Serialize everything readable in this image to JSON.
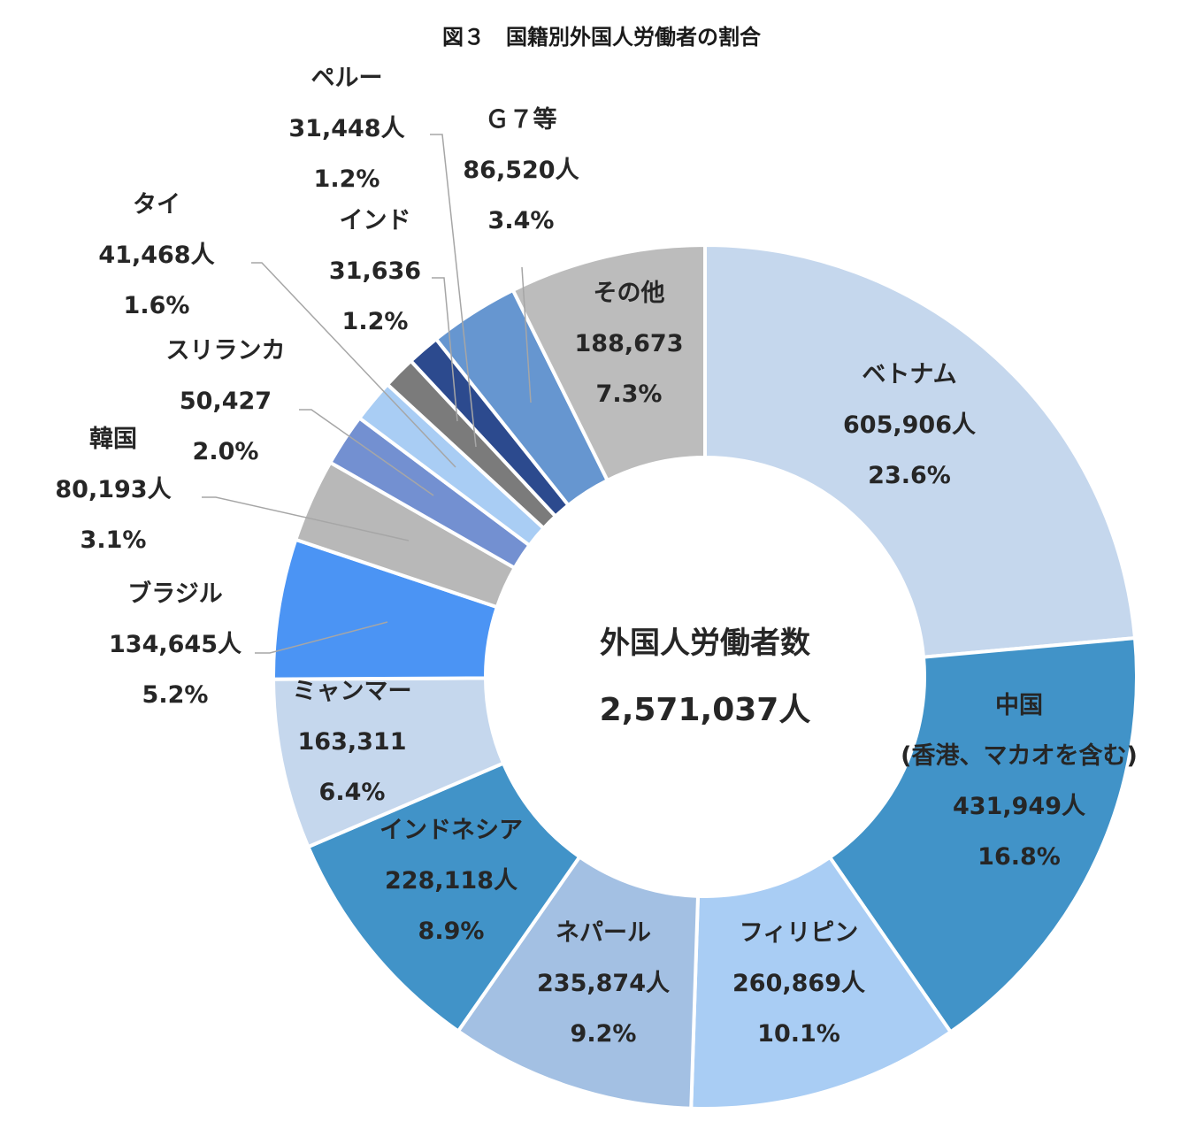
{
  "chart_data": {
    "type": "pie",
    "subtype": "donut",
    "title": "図３　国籍別外国人労働者の割合",
    "center_label": "外国人労働者数",
    "center_value": "2,571,037人",
    "slices": [
      {
        "name": "ベトナム",
        "value": 605906,
        "value_label": "605,906人",
        "percent": "23.6%",
        "color": "#c5d7ed"
      },
      {
        "name": "中国",
        "sub_name": "(香港、マカオを含む)",
        "value": 431949,
        "value_label": "431,949人",
        "percent": "16.8%",
        "color": "#4193c8"
      },
      {
        "name": "フィリピン",
        "value": 260869,
        "value_label": "260,869人",
        "percent": "10.1%",
        "color": "#a9cdf4"
      },
      {
        "name": "ネパール",
        "value": 235874,
        "value_label": "235,874人",
        "percent": "9.2%",
        "color": "#a3c0e3"
      },
      {
        "name": "インドネシア",
        "value": 228118,
        "value_label": "228,118人",
        "percent": "8.9%",
        "color": "#4193c8"
      },
      {
        "name": "ミャンマー",
        "value": 163311,
        "value_label": "163,311",
        "percent": "6.4%",
        "color": "#c5d7ed"
      },
      {
        "name": "ブラジル",
        "value": 134645,
        "value_label": "134,645人",
        "percent": "5.2%",
        "color": "#4b94f4"
      },
      {
        "name": "韓国",
        "value": 80193,
        "value_label": "80,193人",
        "percent": "3.1%",
        "color": "#b8b8b8"
      },
      {
        "name": "スリランカ",
        "value": 50427,
        "value_label": "50,427",
        "percent": "2.0%",
        "color": "#7390d1"
      },
      {
        "name": "タイ",
        "value": 41468,
        "value_label": "41,468人",
        "percent": "1.6%",
        "color": "#a9cdf4"
      },
      {
        "name": "ペルー",
        "value": 31448,
        "value_label": "31,448人",
        "percent": "1.2%",
        "color": "#7b7b7b"
      },
      {
        "name": "インド",
        "value": 31636,
        "value_label": "31,636",
        "percent": "1.2%",
        "color": "#2c4a8e"
      },
      {
        "name": "Ｇ７等",
        "value": 86520,
        "value_label": "86,520人",
        "percent": "3.4%",
        "color": "#6696d0"
      },
      {
        "name": "その他",
        "value": 188673,
        "value_label": "188,673",
        "percent": "7.3%",
        "color": "#bcbcbc"
      }
    ]
  }
}
